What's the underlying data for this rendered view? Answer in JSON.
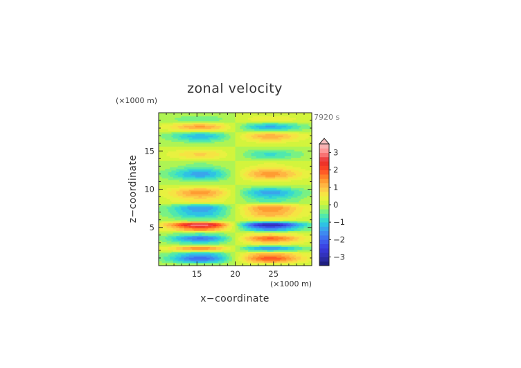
{
  "chart_data": {
    "type": "heatmap",
    "title": "zonal velocity",
    "xlabel": "x−coordinate",
    "ylabel": "z−coordinate",
    "x_unit": "(×1000 m)",
    "y_unit": "(×1000 m)",
    "time_label": "7920 s",
    "xlim": [
      10,
      30
    ],
    "ylim": [
      0,
      20
    ],
    "x_ticks": [
      "15",
      "20",
      "25"
    ],
    "x_tick_values": [
      15,
      20,
      25
    ],
    "y_ticks": [
      "5",
      "10",
      "15"
    ],
    "y_tick_values": [
      5,
      10,
      15
    ],
    "colorbar": {
      "min": -3.5,
      "max": 3.5,
      "labels": [
        "3",
        "2",
        "1",
        "0",
        "−1",
        "−2",
        "−3"
      ],
      "label_values": [
        3,
        2,
        1,
        0,
        -1,
        -2,
        -3
      ],
      "step": 0.25,
      "extend_top": true,
      "stops": [
        {
          "v": -3.5,
          "c": "#1a1a70"
        },
        {
          "v": -3.0,
          "c": "#2f2fb0"
        },
        {
          "v": -2.5,
          "c": "#3a3ae0"
        },
        {
          "v": -2.0,
          "c": "#3f66f0"
        },
        {
          "v": -1.5,
          "c": "#3f96f0"
        },
        {
          "v": -1.0,
          "c": "#2ad1e0"
        },
        {
          "v": -0.5,
          "c": "#5ef09c"
        },
        {
          "v": 0.0,
          "c": "#c8f53c"
        },
        {
          "v": 0.5,
          "c": "#f3ef41"
        },
        {
          "v": 1.0,
          "c": "#ffc24a"
        },
        {
          "v": 1.5,
          "c": "#ff8f2a"
        },
        {
          "v": 2.0,
          "c": "#ff4a24"
        },
        {
          "v": 2.5,
          "c": "#e82b2b"
        },
        {
          "v": 3.0,
          "c": "#ff8a8a"
        },
        {
          "v": 3.5,
          "c": "#f6c0c0"
        }
      ]
    },
    "field": {
      "z": [
        0,
        1,
        1.5,
        2.3,
        3,
        3.6,
        4.2,
        4.8,
        5.4,
        6,
        6.8,
        7.6,
        8.5,
        9.6,
        10.7,
        12,
        13.3,
        14.6,
        15.9,
        17,
        18.2,
        19.2,
        20
      ],
      "a": [
        0,
        -2.0,
        -1.3,
        1.5,
        -0.8,
        -1.8,
        -0.6,
        1.5,
        3.1,
        -0.4,
        -1.2,
        -1.5,
        0.6,
        1.4,
        0.0,
        -1.4,
        -0.3,
        0.8,
        -0.2,
        -1.2,
        1.3,
        -0.5,
        0
      ],
      "x_centers": [
        15.5,
        24.5
      ],
      "x_amplitude": [
        1.0,
        -1.0
      ]
    }
  }
}
